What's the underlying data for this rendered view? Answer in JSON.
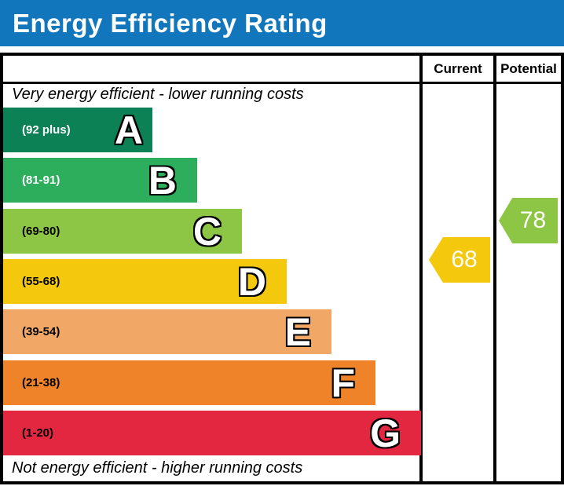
{
  "title": "Energy Efficiency Rating",
  "header": {
    "current_label": "Current",
    "potential_label": "Potential"
  },
  "notes": {
    "top": "Very energy efficient - lower running costs",
    "bottom": "Not energy efficient - higher running costs"
  },
  "bands": [
    {
      "letter": "A",
      "range": "(92 plus)",
      "color": "#0c8156"
    },
    {
      "letter": "B",
      "range": "(81-91)",
      "color": "#2cae5c"
    },
    {
      "letter": "C",
      "range": "(69-80)",
      "color": "#8dc645"
    },
    {
      "letter": "D",
      "range": "(55-68)",
      "color": "#f3c80d"
    },
    {
      "letter": "E",
      "range": "(39-54)",
      "color": "#f1a866"
    },
    {
      "letter": "F",
      "range": "(21-38)",
      "color": "#ee8329"
    },
    {
      "letter": "G",
      "range": "(1-20)",
      "color": "#e32740"
    }
  ],
  "ratings": {
    "current": {
      "value": "68",
      "band": "D",
      "color": "#f3c80d",
      "shape": "left-pointing-arrow"
    },
    "potential": {
      "value": "78",
      "band": "C",
      "color": "#8dc645",
      "shape": "left-pointing-arrow"
    }
  },
  "colors": {
    "title_bar": "#1176bc",
    "title_text": "#ffffff",
    "border": "#000000"
  },
  "chart_data": {
    "type": "bar",
    "title": "Energy Efficiency Rating",
    "orientation": "horizontal",
    "value_range": [
      1,
      100
    ],
    "bands": [
      {
        "letter": "A",
        "range_label": "92 plus",
        "min": 92,
        "max": 100,
        "color": "#0c8156"
      },
      {
        "letter": "B",
        "range_label": "81-91",
        "min": 81,
        "max": 91,
        "color": "#2cae5c"
      },
      {
        "letter": "C",
        "range_label": "69-80",
        "min": 69,
        "max": 80,
        "color": "#8dc645"
      },
      {
        "letter": "D",
        "range_label": "55-68",
        "min": 55,
        "max": 68,
        "color": "#f3c80d"
      },
      {
        "letter": "E",
        "range_label": "39-54",
        "min": 39,
        "max": 54,
        "color": "#f1a866"
      },
      {
        "letter": "F",
        "range_label": "21-38",
        "min": 21,
        "max": 38,
        "color": "#ee8329"
      },
      {
        "letter": "G",
        "range_label": "1-20",
        "min": 1,
        "max": 20,
        "color": "#e32740"
      }
    ],
    "values": [
      {
        "name": "Current",
        "value": 68,
        "band": "D"
      },
      {
        "name": "Potential",
        "value": 78,
        "band": "C"
      }
    ],
    "annotations": [
      "Very energy efficient - lower running costs",
      "Not energy efficient - higher running costs"
    ]
  }
}
